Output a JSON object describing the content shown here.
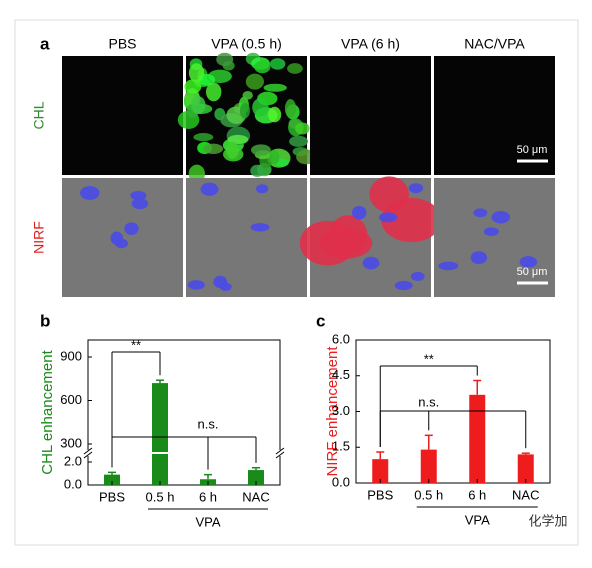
{
  "figure": {
    "panels": [
      "a",
      "b",
      "c"
    ],
    "columns": [
      "PBS",
      "VPA (0.5 h)",
      "VPA (6 h)",
      "NAC/VPA"
    ],
    "rows": [
      "CHL",
      "NIRF"
    ],
    "scale_bar": "50 μm"
  },
  "chart_data": [
    {
      "type": "bar",
      "ylabel": "CHL enhancement",
      "categories": [
        "PBS",
        "0.5 h",
        "6 h",
        "NAC"
      ],
      "values": [
        0.9,
        720,
        0.5,
        1.3
      ],
      "errors": [
        0.2,
        20,
        0.4,
        0.2
      ],
      "color": "#1a8a1a",
      "ylim": [
        0,
        900
      ],
      "ybreak": [
        2.0,
        300
      ],
      "yticks": [
        {
          "value": 0,
          "label": "0.0"
        },
        {
          "value": 2,
          "label": "2.0"
        },
        300,
        600,
        900
      ],
      "group_label": "VPA",
      "annotations": [
        "**",
        "n.s."
      ]
    },
    {
      "type": "bar",
      "ylabel": "NIRF enhancement",
      "categories": [
        "PBS",
        "0.5 h",
        "6 h",
        "NAC"
      ],
      "values": [
        1.0,
        1.4,
        3.7,
        1.2
      ],
      "errors": [
        0.3,
        0.6,
        0.6,
        0.05
      ],
      "color": "#ee1c1c",
      "ylim": [
        0,
        6
      ],
      "yticks": [
        {
          "value": 0,
          "label": "0.0"
        },
        {
          "value": 1.5,
          "label": "1.5"
        },
        {
          "value": 3,
          "label": "3.0"
        },
        {
          "value": 4.5,
          "label": "4.5"
        },
        {
          "value": 6,
          "label": "6.0"
        }
      ],
      "group_label": "VPA",
      "annotations": [
        "**",
        "n.s."
      ]
    }
  ],
  "watermark": "化学加"
}
